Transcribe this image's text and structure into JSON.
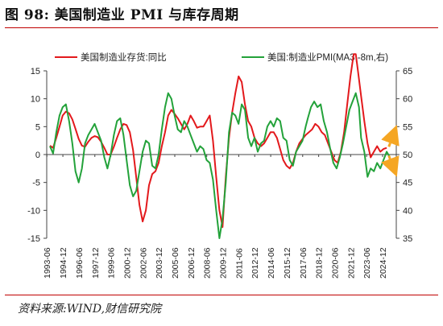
{
  "figure": {
    "title": "图 98:  美国制造业 PMI 与库存周期",
    "source": "资料来源:WIND,财信研究院"
  },
  "colors": {
    "series_inventory": "#e3191c",
    "series_pmi": "#23a23a",
    "arrow": "#f5a623",
    "axis": "#444444",
    "rule": "#c00000"
  },
  "chart_data": {
    "type": "line",
    "title": "",
    "x_tick_labels": [
      "1993-06",
      "1994-12",
      "1996-06",
      "1997-12",
      "1999-06",
      "2000-12",
      "2002-06",
      "2003-12",
      "2005-06",
      "2006-12",
      "2008-06",
      "2009-12",
      "2011-06",
      "2012-12",
      "2014-06",
      "2015-12",
      "2017-06",
      "2018-12",
      "2020-06",
      "2021-12",
      "2023-06",
      "2024-12"
    ],
    "x_range": [
      1993.4,
      2026.2
    ],
    "y_left": {
      "ticks": [
        "15",
        "10",
        "5",
        "0",
        "-5",
        "-10",
        "-15"
      ],
      "range": [
        -15,
        15
      ]
    },
    "y_right": {
      "ticks": [
        "65",
        "60",
        "55",
        "50",
        "45",
        "40",
        "35"
      ],
      "range": [
        35,
        65
      ]
    },
    "legend": {
      "position": "top",
      "entries": [
        "美国制造业存货:同比",
        "美国:制造业PMI(MA3,-8m,右)"
      ]
    },
    "annotations": [
      {
        "type": "arrow",
        "from": [
          2025.5,
          51.4
        ],
        "to": [
          2026.1,
          54.5
        ],
        "axis": "right",
        "style": "dashed"
      },
      {
        "type": "arrow",
        "from": [
          2025.5,
          49.8
        ],
        "to": [
          2026.1,
          46.8
        ],
        "axis": "right",
        "style": "dashed"
      }
    ],
    "series": [
      {
        "name": "美国制造业存货:同比",
        "axis": "left",
        "color": "#e3191c",
        "points": [
          [
            1993.7,
            1.6
          ],
          [
            1994.0,
            1.2
          ],
          [
            1994.3,
            3.0
          ],
          [
            1994.6,
            5.0
          ],
          [
            1994.9,
            7.0
          ],
          [
            1995.2,
            7.7
          ],
          [
            1995.5,
            7.4
          ],
          [
            1995.8,
            6.3
          ],
          [
            1996.1,
            4.6
          ],
          [
            1996.4,
            2.8
          ],
          [
            1996.7,
            1.6
          ],
          [
            1997.0,
            1.4
          ],
          [
            1997.3,
            2.3
          ],
          [
            1997.6,
            3.0
          ],
          [
            1997.9,
            3.3
          ],
          [
            1998.2,
            3.1
          ],
          [
            1998.5,
            2.3
          ],
          [
            1998.8,
            1.2
          ],
          [
            1999.1,
            0.0
          ],
          [
            1999.4,
            0.0
          ],
          [
            1999.7,
            1.4
          ],
          [
            2000.0,
            3.0
          ],
          [
            2000.3,
            4.5
          ],
          [
            2000.6,
            5.5
          ],
          [
            2000.9,
            5.3
          ],
          [
            2001.2,
            4.0
          ],
          [
            2001.5,
            0.8
          ],
          [
            2001.8,
            -4.0
          ],
          [
            2002.1,
            -9.0
          ],
          [
            2002.4,
            -12.0
          ],
          [
            2002.7,
            -10.0
          ],
          [
            2003.0,
            -5.5
          ],
          [
            2003.3,
            -3.5
          ],
          [
            2003.6,
            -3.0
          ],
          [
            2003.9,
            -1.5
          ],
          [
            2004.2,
            1.5
          ],
          [
            2004.5,
            4.0
          ],
          [
            2004.8,
            7.0
          ],
          [
            2005.1,
            8.0
          ],
          [
            2005.4,
            7.3
          ],
          [
            2005.7,
            6.5
          ],
          [
            2006.0,
            5.5
          ],
          [
            2006.3,
            4.5
          ],
          [
            2006.6,
            5.5
          ],
          [
            2006.9,
            7.0
          ],
          [
            2007.2,
            6.0
          ],
          [
            2007.5,
            4.8
          ],
          [
            2007.8,
            5.0
          ],
          [
            2008.1,
            5.0
          ],
          [
            2008.4,
            6.0
          ],
          [
            2008.7,
            7.0
          ],
          [
            2009.0,
            2.5
          ],
          [
            2009.3,
            -4.0
          ],
          [
            2009.6,
            -10.0
          ],
          [
            2009.9,
            -13.0
          ],
          [
            2010.2,
            -4.0
          ],
          [
            2010.5,
            3.0
          ],
          [
            2010.8,
            7.5
          ],
          [
            2011.1,
            11.0
          ],
          [
            2011.4,
            14.0
          ],
          [
            2011.7,
            13.0
          ],
          [
            2012.0,
            9.0
          ],
          [
            2012.3,
            6.0
          ],
          [
            2012.6,
            5.0
          ],
          [
            2012.9,
            3.0
          ],
          [
            2013.2,
            2.0
          ],
          [
            2013.5,
            1.5
          ],
          [
            2013.8,
            2.0
          ],
          [
            2014.1,
            3.0
          ],
          [
            2014.4,
            4.0
          ],
          [
            2014.7,
            4.0
          ],
          [
            2015.0,
            3.0
          ],
          [
            2015.3,
            1.0
          ],
          [
            2015.6,
            -1.0
          ],
          [
            2015.9,
            -2.0
          ],
          [
            2016.2,
            -2.5
          ],
          [
            2016.5,
            -1.5
          ],
          [
            2016.8,
            0.5
          ],
          [
            2017.1,
            2.0
          ],
          [
            2017.4,
            2.8
          ],
          [
            2017.7,
            3.5
          ],
          [
            2018.0,
            4.0
          ],
          [
            2018.3,
            4.5
          ],
          [
            2018.6,
            5.5
          ],
          [
            2018.9,
            5.0
          ],
          [
            2019.2,
            4.0
          ],
          [
            2019.5,
            3.5
          ],
          [
            2019.8,
            2.0
          ],
          [
            2020.1,
            0.5
          ],
          [
            2020.4,
            -1.0
          ],
          [
            2020.7,
            -1.5
          ],
          [
            2021.0,
            0.5
          ],
          [
            2021.3,
            4.0
          ],
          [
            2021.6,
            9.0
          ],
          [
            2021.9,
            14.0
          ],
          [
            2022.2,
            18.0
          ],
          [
            2022.4,
            18.0
          ],
          [
            2022.6,
            15.0
          ],
          [
            2022.9,
            10.5
          ],
          [
            2023.2,
            6.0
          ],
          [
            2023.5,
            2.0
          ],
          [
            2023.8,
            -0.5
          ],
          [
            2024.1,
            0.5
          ],
          [
            2024.4,
            1.5
          ],
          [
            2024.7,
            0.5
          ],
          [
            2025.0,
            1.0
          ],
          [
            2025.3,
            1.2
          ]
        ]
      },
      {
        "name": "美国:制造业PMI(MA3,-8m,右)",
        "axis": "right",
        "color": "#23a23a",
        "points": [
          [
            1993.7,
            51.5
          ],
          [
            1994.0,
            50.2
          ],
          [
            1994.3,
            54.0
          ],
          [
            1994.6,
            57.0
          ],
          [
            1994.9,
            58.5
          ],
          [
            1995.2,
            59.0
          ],
          [
            1995.5,
            56.0
          ],
          [
            1995.8,
            52.0
          ],
          [
            1996.1,
            47.0
          ],
          [
            1996.4,
            45.0
          ],
          [
            1996.7,
            47.5
          ],
          [
            1997.0,
            52.0
          ],
          [
            1997.3,
            53.5
          ],
          [
            1997.6,
            54.5
          ],
          [
            1997.9,
            55.5
          ],
          [
            1998.2,
            54.0
          ],
          [
            1998.5,
            52.5
          ],
          [
            1998.8,
            49.5
          ],
          [
            1999.1,
            47.5
          ],
          [
            1999.4,
            50.0
          ],
          [
            1999.7,
            53.5
          ],
          [
            2000.0,
            56.0
          ],
          [
            2000.3,
            56.5
          ],
          [
            2000.6,
            53.5
          ],
          [
            2000.9,
            49.0
          ],
          [
            2001.2,
            44.5
          ],
          [
            2001.5,
            42.5
          ],
          [
            2001.8,
            43.5
          ],
          [
            2002.1,
            47.0
          ],
          [
            2002.4,
            50.5
          ],
          [
            2002.7,
            52.5
          ],
          [
            2003.0,
            52.0
          ],
          [
            2003.3,
            48.0
          ],
          [
            2003.6,
            47.5
          ],
          [
            2003.9,
            50.0
          ],
          [
            2004.2,
            54.5
          ],
          [
            2004.5,
            58.5
          ],
          [
            2004.8,
            61.0
          ],
          [
            2005.1,
            60.0
          ],
          [
            2005.4,
            57.0
          ],
          [
            2005.7,
            54.5
          ],
          [
            2006.0,
            54.0
          ],
          [
            2006.3,
            56.0
          ],
          [
            2006.6,
            55.0
          ],
          [
            2006.9,
            53.5
          ],
          [
            2007.2,
            52.0
          ],
          [
            2007.5,
            50.5
          ],
          [
            2007.8,
            51.5
          ],
          [
            2008.1,
            51.0
          ],
          [
            2008.4,
            49.0
          ],
          [
            2008.7,
            48.5
          ],
          [
            2009.0,
            45.5
          ],
          [
            2009.3,
            40.0
          ],
          [
            2009.6,
            35.0
          ],
          [
            2009.9,
            38.5
          ],
          [
            2010.2,
            45.0
          ],
          [
            2010.5,
            54.0
          ],
          [
            2010.8,
            57.5
          ],
          [
            2011.1,
            57.0
          ],
          [
            2011.4,
            55.5
          ],
          [
            2011.7,
            59.0
          ],
          [
            2012.0,
            58.0
          ],
          [
            2012.3,
            53.0
          ],
          [
            2012.6,
            51.5
          ],
          [
            2012.9,
            53.0
          ],
          [
            2013.2,
            50.5
          ],
          [
            2013.5,
            52.0
          ],
          [
            2013.8,
            52.5
          ],
          [
            2014.1,
            55.0
          ],
          [
            2014.4,
            56.0
          ],
          [
            2014.7,
            55.0
          ],
          [
            2015.0,
            56.5
          ],
          [
            2015.3,
            56.0
          ],
          [
            2015.6,
            53.0
          ],
          [
            2015.9,
            52.5
          ],
          [
            2016.2,
            49.0
          ],
          [
            2016.5,
            48.0
          ],
          [
            2016.8,
            50.5
          ],
          [
            2017.1,
            51.5
          ],
          [
            2017.4,
            52.5
          ],
          [
            2017.7,
            55.0
          ],
          [
            2017.9,
            56.5
          ],
          [
            2018.2,
            58.5
          ],
          [
            2018.5,
            59.5
          ],
          [
            2018.8,
            58.5
          ],
          [
            2019.1,
            59.0
          ],
          [
            2019.4,
            56.0
          ],
          [
            2019.7,
            54.0
          ],
          [
            2020.0,
            51.0
          ],
          [
            2020.3,
            48.5
          ],
          [
            2020.6,
            47.5
          ],
          [
            2020.9,
            49.5
          ],
          [
            2021.2,
            52.0
          ],
          [
            2021.5,
            55.0
          ],
          [
            2021.8,
            58.0
          ],
          [
            2022.1,
            59.5
          ],
          [
            2022.4,
            61.0
          ],
          [
            2022.7,
            58.5
          ],
          [
            2022.9,
            53.0
          ],
          [
            2023.2,
            50.5
          ],
          [
            2023.5,
            46.0
          ],
          [
            2023.8,
            47.5
          ],
          [
            2024.1,
            47.0
          ],
          [
            2024.4,
            48.5
          ],
          [
            2024.7,
            47.5
          ],
          [
            2025.0,
            49.0
          ],
          [
            2025.3,
            50.5
          ],
          [
            2025.6,
            49.5
          ]
        ]
      }
    ]
  }
}
